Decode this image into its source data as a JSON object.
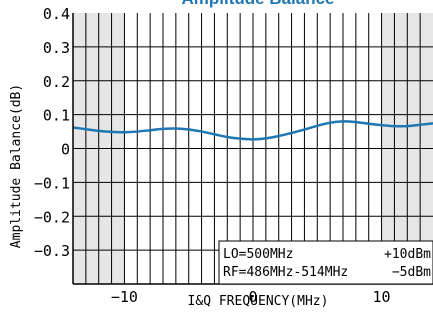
{
  "chart_data": {
    "type": "line",
    "title": "Amplitude Balance",
    "xlabel": "I&Q FREQUENCY(MHz)",
    "ylabel": "Amplitude Balance(dB)",
    "xlim": [
      -14,
      14
    ],
    "ylim": [
      -0.4,
      0.4
    ],
    "x_ticks": [
      -10,
      0,
      10
    ],
    "x_tick_labels": [
      "−10",
      "0",
      "10"
    ],
    "y_ticks": [
      0.4,
      0.3,
      0.2,
      0.1,
      0,
      -0.1,
      -0.2,
      -0.3
    ],
    "y_tick_labels": [
      "0.4",
      "0.3",
      "0.2",
      "0.1",
      "0",
      "−0.1",
      "−0.2",
      "−0.3"
    ],
    "grid": true,
    "shaded_x_ranges": [
      [
        -14,
        -10
      ],
      [
        10,
        14
      ]
    ],
    "line_color": "#1f77b4",
    "shade_color": "#e6e6e6",
    "series": [
      {
        "x": [
          -14,
          -13,
          -12,
          -11,
          -10,
          -9,
          -8,
          -7,
          -6,
          -5,
          -4,
          -3,
          -2,
          -1,
          0,
          1,
          2,
          3,
          4,
          5,
          6,
          7,
          8,
          9,
          10,
          11,
          12,
          13,
          14
        ],
        "values": [
          0.062,
          0.057,
          0.052,
          0.049,
          0.048,
          0.05,
          0.054,
          0.058,
          0.059,
          0.056,
          0.05,
          0.042,
          0.034,
          0.029,
          0.027,
          0.03,
          0.037,
          0.046,
          0.056,
          0.067,
          0.076,
          0.08,
          0.078,
          0.073,
          0.069,
          0.066,
          0.066,
          0.07,
          0.074
        ]
      }
    ],
    "annotation": {
      "rows": [
        {
          "left": "LO=500MHz",
          "right": "+10dBm"
        },
        {
          "left": "RF=486MHz-514MHz",
          "right": "−5dBm"
        }
      ]
    }
  }
}
